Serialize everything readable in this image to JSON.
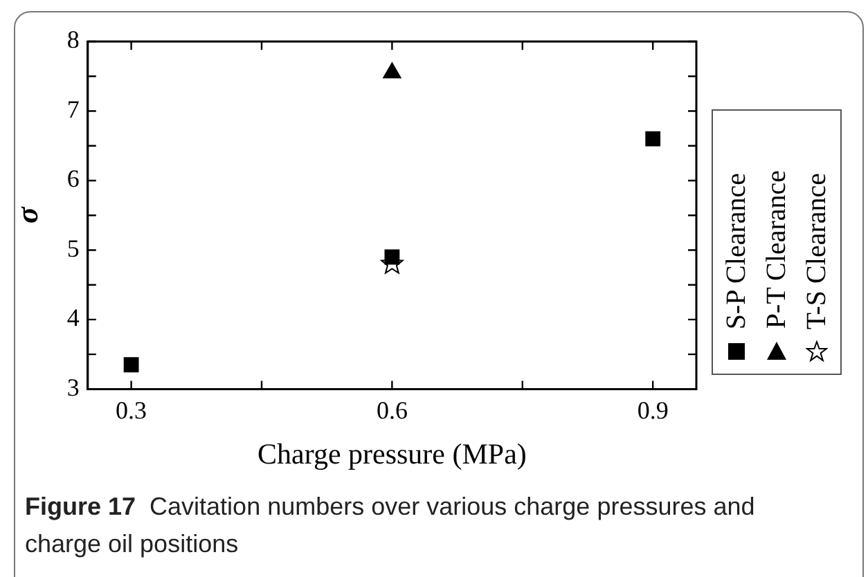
{
  "chart_data": {
    "type": "scatter",
    "xlabel": "Charge pressure (MPa)",
    "ylabel": "σ",
    "xlim": [
      0.25,
      0.95
    ],
    "xticks": [
      0.3,
      {
        "value": 0.45,
        "label": null
      },
      0.6,
      {
        "value": 0.75,
        "label": null
      },
      0.9
    ],
    "ylim": [
      3,
      8
    ],
    "yticks": [
      3,
      {
        "value": 3.5,
        "label": null
      },
      4,
      {
        "value": 4.5,
        "label": null
      },
      5,
      {
        "value": 5.5,
        "label": null
      },
      6,
      {
        "value": 6.5,
        "label": null
      },
      7,
      {
        "value": 7.5,
        "label": null
      },
      8
    ],
    "legend": "right",
    "grid": false,
    "series": [
      {
        "name": "S-P Clearance",
        "color": "#000000",
        "marker": "square",
        "x": [
          0.3,
          0.6,
          0.9
        ],
        "values": [
          3.35,
          4.9,
          6.6
        ]
      },
      {
        "name": "P-T Clearance",
        "color": "#000000",
        "marker": "triangle",
        "x": [
          0.6
        ],
        "values": [
          7.55
        ]
      },
      {
        "name": "T-S Clearance",
        "color": "#000000",
        "marker": "star",
        "x": [
          0.6
        ],
        "values": [
          4.8
        ]
      }
    ],
    "annotations": [
      "Figure 17",
      "Cavitation numbers over various charge pressures and charge oil positions"
    ]
  }
}
